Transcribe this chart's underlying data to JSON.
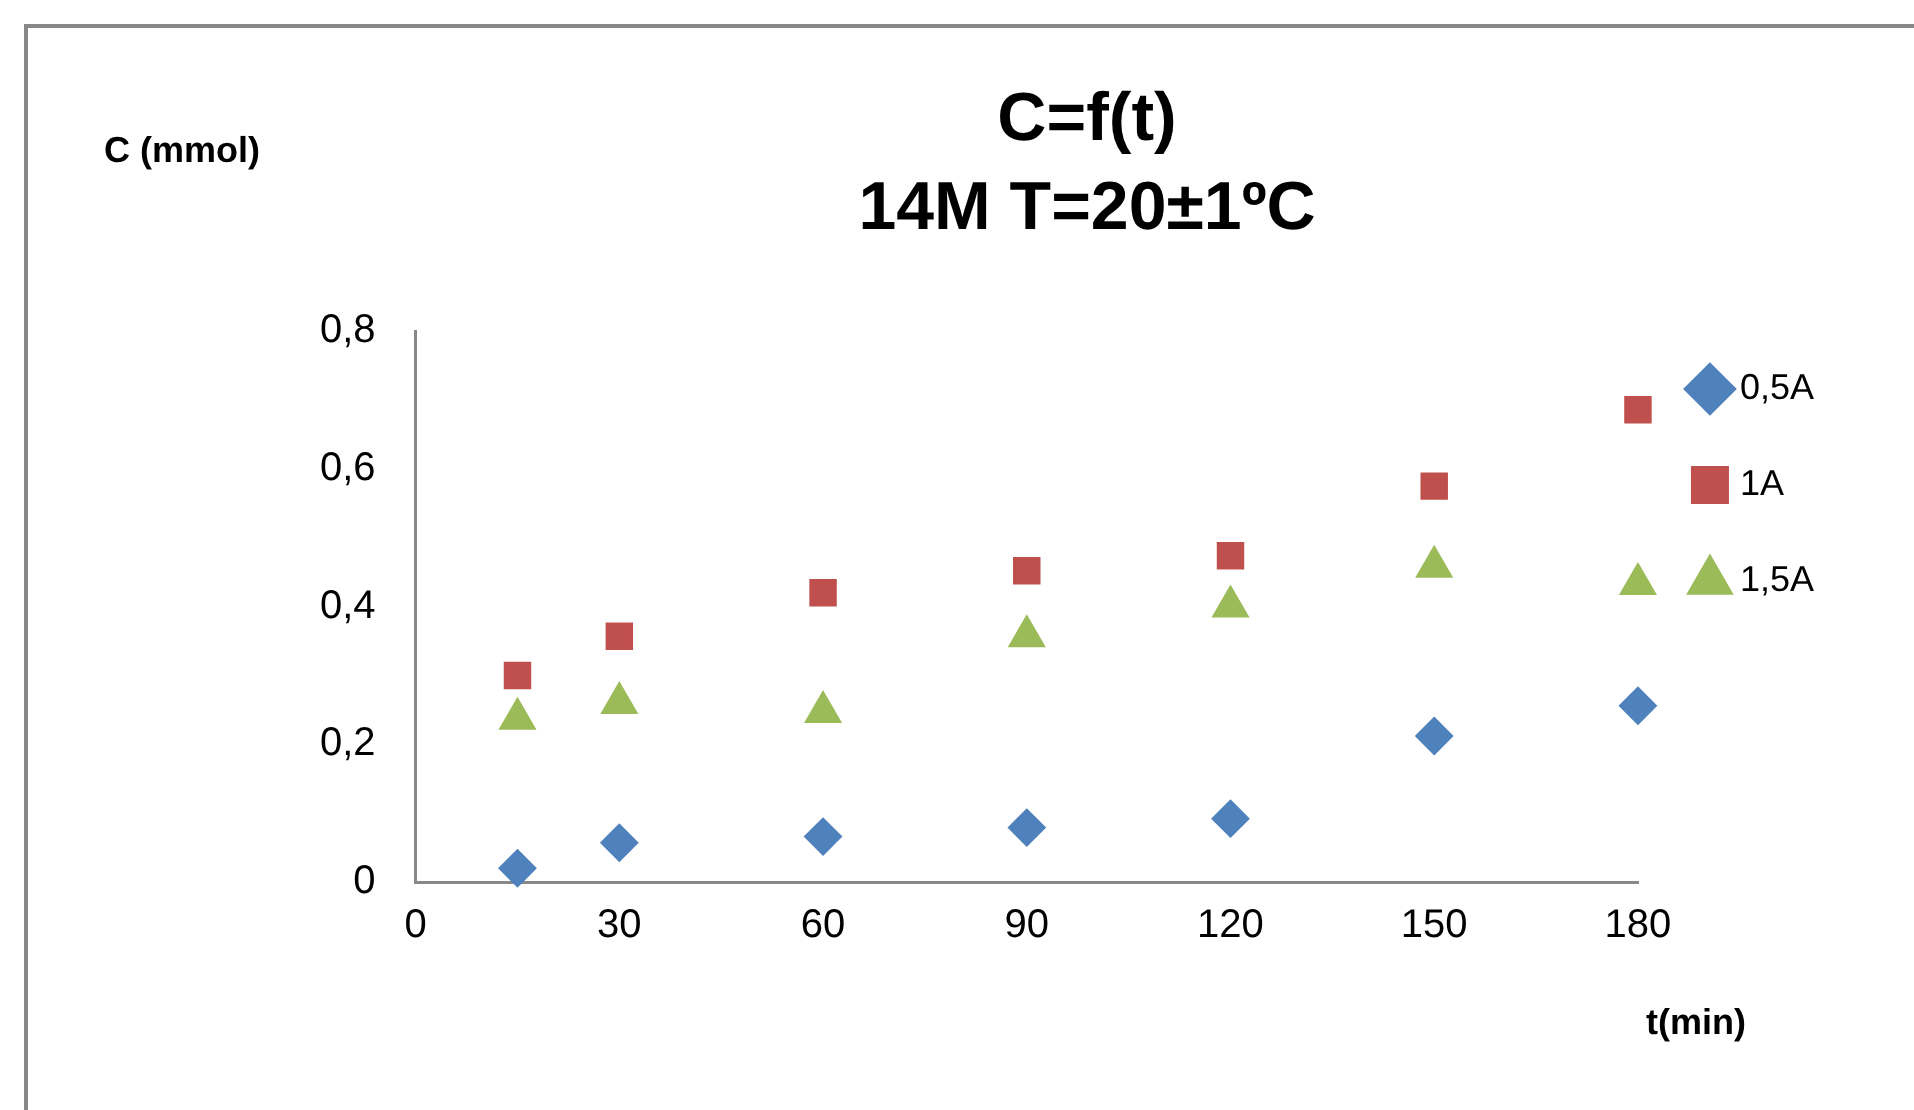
{
  "chart_data": {
    "type": "scatter",
    "title": "C=f(t)",
    "subtitle": "14M T=20±1ºC",
    "xlabel": "t(min)",
    "ylabel": "C (mmol)",
    "series": [
      {
        "name": "0,5A",
        "color": "#4f81bd",
        "marker": "diamond",
        "x": [
          15,
          30,
          60,
          90,
          120,
          150,
          180
        ],
        "values": [
          0.02,
          0.057,
          0.066,
          0.079,
          0.092,
          0.212,
          0.256
        ]
      },
      {
        "name": "1A",
        "color": "#c0504d",
        "marker": "square",
        "x": [
          15,
          30,
          60,
          90,
          120,
          150,
          180
        ],
        "values": [
          0.3,
          0.357,
          0.42,
          0.452,
          0.474,
          0.575,
          0.686
        ]
      },
      {
        "name": "1,5A",
        "color": "#9bbb59",
        "marker": "triangle",
        "x": [
          15,
          30,
          60,
          90,
          120,
          150,
          180
        ],
        "values": [
          0.237,
          0.26,
          0.247,
          0.357,
          0.4,
          0.458,
          0.433
        ]
      }
    ],
    "xlim": [
      0,
      180
    ],
    "xticks": [
      0,
      30,
      60,
      90,
      120,
      150,
      180
    ],
    "ylim": [
      0,
      0.8
    ],
    "yticks": [
      0,
      {
        "value": 0.2,
        "label": "0,2"
      },
      {
        "value": 0.4,
        "label": "0,4"
      },
      {
        "value": 0.6,
        "label": "0,6"
      },
      {
        "value": 0.8,
        "label": "0,8"
      }
    ],
    "grid": false,
    "legend": "right"
  }
}
